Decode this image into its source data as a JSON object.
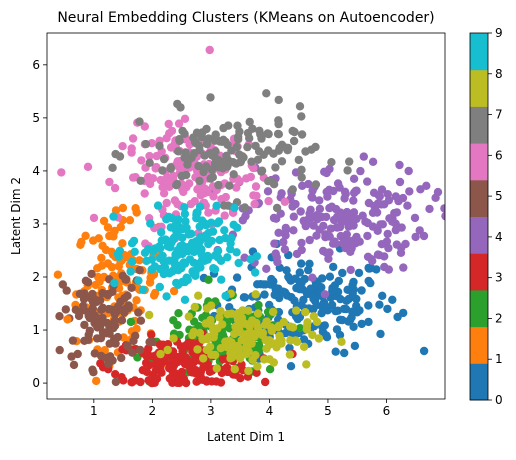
{
  "chart_data": {
    "type": "scatter",
    "title": "Neural Embedding Clusters (KMeans on Autoencoder)",
    "xlabel": "Latent Dim 1",
    "ylabel": "Latent Dim 2",
    "xlim": [
      0.2,
      7.0
    ],
    "ylim": [
      -0.3,
      6.6
    ],
    "x_ticks": [
      "1",
      "2",
      "3",
      "4",
      "5",
      "6"
    ],
    "y_ticks": [
      "0",
      "1",
      "2",
      "3",
      "4",
      "5",
      "6"
    ],
    "grid": false,
    "colorbar": {
      "ticks": [
        "0",
        "1",
        "2",
        "3",
        "4",
        "5",
        "6",
        "7",
        "8",
        "9"
      ],
      "colormap": "tab10",
      "colors": [
        "#1f77b4",
        "#ff7f0e",
        "#2ca02c",
        "#d62728",
        "#9467bd",
        "#8c564b",
        "#e377c2",
        "#7f7f7f",
        "#bcbd22",
        "#17becf"
      ]
    },
    "clusters": [
      {
        "label": 0,
        "center": [
          4.6,
          1.5
        ],
        "spread": [
          0.75,
          0.45
        ],
        "count": 200,
        "color": "#1f77b4"
      },
      {
        "label": 1,
        "center": [
          1.4,
          1.9
        ],
        "spread": [
          0.35,
          0.6
        ],
        "count": 130,
        "color": "#ff7f0e"
      },
      {
        "label": 2,
        "center": [
          3.2,
          0.8
        ],
        "spread": [
          0.55,
          0.35
        ],
        "count": 140,
        "color": "#2ca02c"
      },
      {
        "label": 3,
        "center": [
          2.5,
          0.35
        ],
        "spread": [
          0.6,
          0.25
        ],
        "count": 180,
        "color": "#d62728"
      },
      {
        "label": 4,
        "center": [
          5.1,
          3.1
        ],
        "spread": [
          0.8,
          0.5
        ],
        "count": 210,
        "color": "#9467bd"
      },
      {
        "label": 5,
        "center": [
          1.2,
          1.2
        ],
        "spread": [
          0.35,
          0.45
        ],
        "count": 110,
        "color": "#8c564b"
      },
      {
        "label": 6,
        "center": [
          2.7,
          3.9
        ],
        "spread": [
          0.6,
          0.45
        ],
        "count": 190,
        "color": "#e377c2"
      },
      {
        "label": 7,
        "center": [
          3.3,
          4.3
        ],
        "spread": [
          0.75,
          0.4
        ],
        "count": 150,
        "color": "#7f7f7f"
      },
      {
        "label": 8,
        "center": [
          3.6,
          0.9
        ],
        "spread": [
          0.55,
          0.3
        ],
        "count": 140,
        "color": "#bcbd22"
      },
      {
        "label": 9,
        "center": [
          2.5,
          2.5
        ],
        "spread": [
          0.45,
          0.4
        ],
        "count": 170,
        "color": "#17becf"
      }
    ],
    "outliers": [
      {
        "x": 2.98,
        "y": 6.28,
        "label": 6
      },
      {
        "x": 1.78,
        "y": 4.93,
        "label": 7
      },
      {
        "x": 6.68,
        "y": 3.72,
        "label": 4
      },
      {
        "x": 6.1,
        "y": 1.57,
        "label": 0
      },
      {
        "x": 0.55,
        "y": 1.2,
        "label": 1
      },
      {
        "x": 0.62,
        "y": 0.5,
        "label": 5
      }
    ]
  }
}
